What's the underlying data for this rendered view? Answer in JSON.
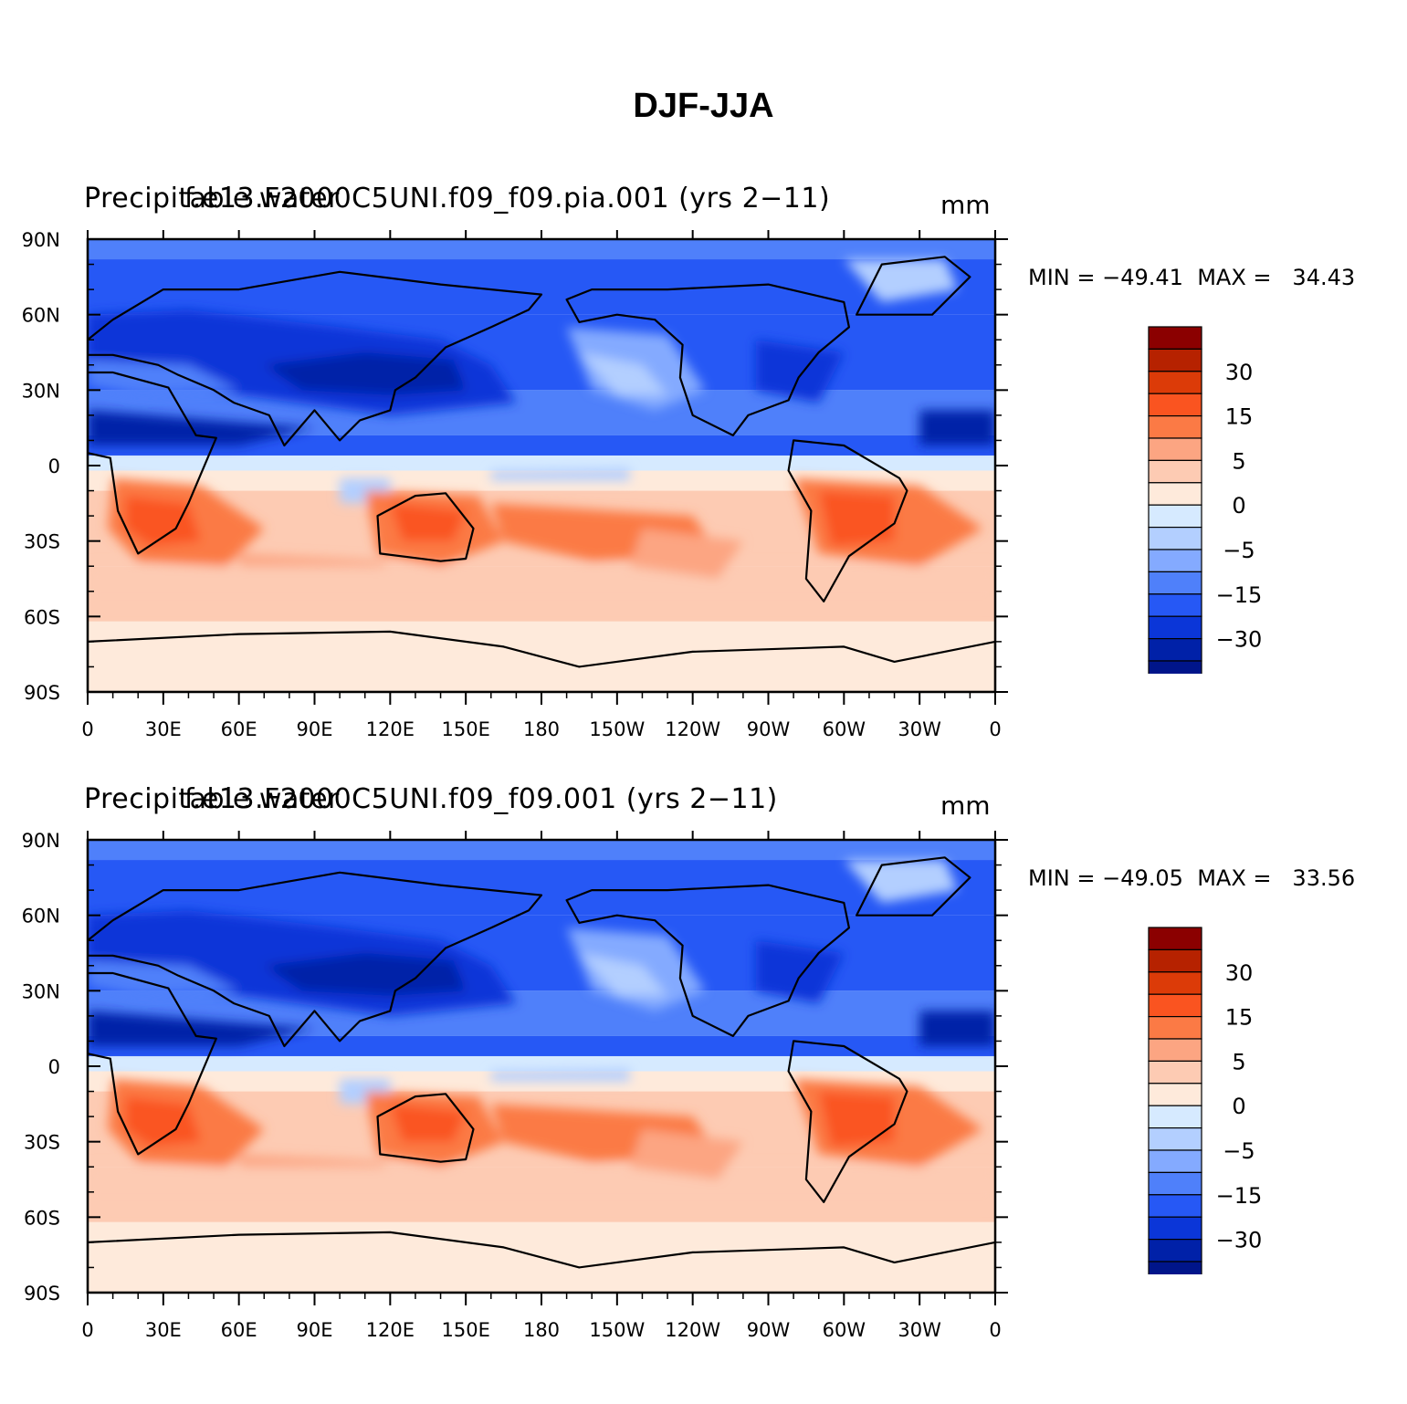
{
  "figure": {
    "title": "DJF-JJA"
  },
  "panels": [
    {
      "title_left": "Precipitable water",
      "title_center": "f.e13.F2000C5UNI.f09_f09.pia.001 (yrs 2−11)",
      "units": "mm",
      "stats": {
        "min_label": "MIN =",
        "min": "−49.41",
        "max_label": "MAX =",
        "max": "34.43"
      }
    },
    {
      "title_left": "Precipitable water",
      "title_center": "f.e13.F2000C5UNI.f09_f09.001 (yrs 2−11)",
      "units": "mm",
      "stats": {
        "min_label": "MIN =",
        "min": "−49.05",
        "max_label": "MAX =",
        "max": "33.56"
      }
    }
  ],
  "axes": {
    "lat_ticks": [
      "90N",
      "60N",
      "30N",
      "0",
      "30S",
      "60S",
      "90S"
    ],
    "lon_ticks": [
      "0",
      "30E",
      "60E",
      "90E",
      "120E",
      "150E",
      "180",
      "150W",
      "120W",
      "90W",
      "60W",
      "30W",
      "0"
    ]
  },
  "colorbar": {
    "labels": [
      "30",
      "15",
      "5",
      "0",
      "−5",
      "−15",
      "−30"
    ],
    "colors_top_to_bottom": [
      "#8b0000",
      "#b62200",
      "#dc3b08",
      "#fa5420",
      "#fb7a45",
      "#fca582",
      "#fdcbb3",
      "#feeadb",
      "#d6eaff",
      "#b3cfff",
      "#84aaff",
      "#4f80fa",
      "#2658f5",
      "#0b36d8",
      "#0021a8",
      "#00158a"
    ]
  },
  "chart_data": [
    {
      "type": "heatmap",
      "title": "DJF-JJA",
      "subtitle": "Precipitable water — f.e13.F2000C5UNI.f09_f09.pia.001 (yrs 2−11)",
      "units": "mm",
      "xlim": [
        0,
        360
      ],
      "ylim": [
        -90,
        90
      ],
      "min": -49.41,
      "max": 34.43,
      "contour_levels": [
        -40,
        -30,
        -25,
        -20,
        -15,
        -10,
        -5,
        -2,
        0,
        2,
        5,
        10,
        15,
        20,
        30,
        40
      ]
    },
    {
      "type": "heatmap",
      "title": "DJF-JJA",
      "subtitle": "Precipitable water — f.e13.F2000C5UNI.f09_f09.001 (yrs 2−11)",
      "units": "mm",
      "xlim": [
        0,
        360
      ],
      "ylim": [
        -90,
        90
      ],
      "min": -49.05,
      "max": 33.56,
      "contour_levels": [
        -40,
        -30,
        -25,
        -20,
        -15,
        -10,
        -5,
        -2,
        0,
        2,
        5,
        10,
        15,
        20,
        30,
        40
      ]
    }
  ]
}
